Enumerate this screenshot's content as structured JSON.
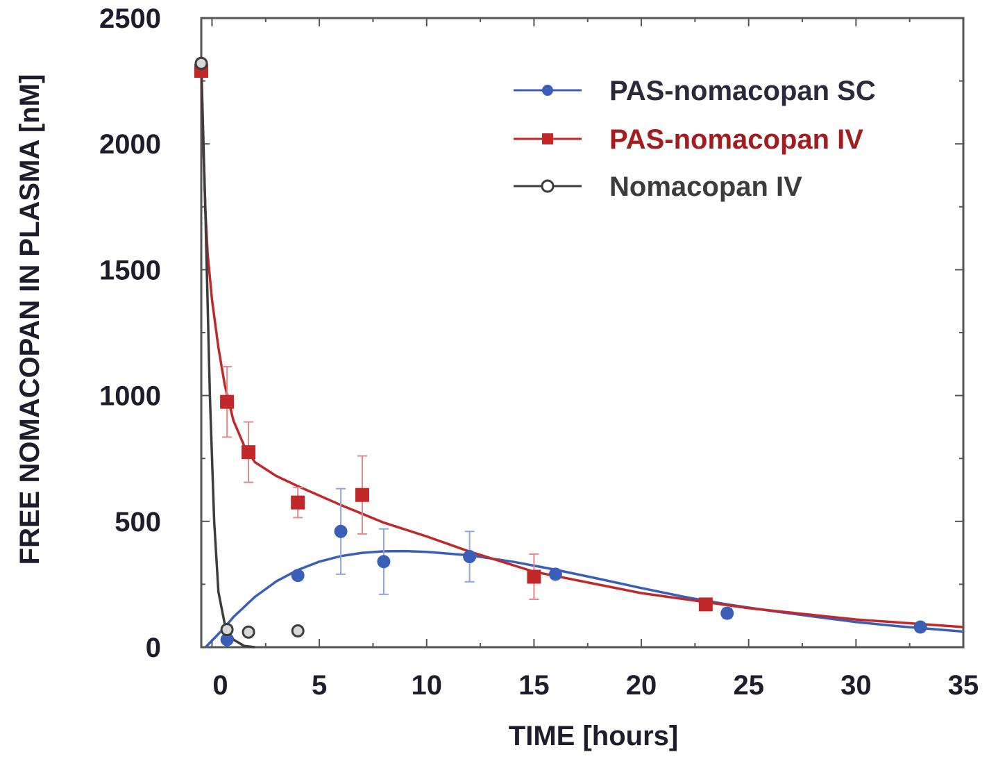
{
  "chart_data": {
    "type": "line",
    "title": "",
    "xlabel": "TIME [hours]",
    "ylabel": "FREE NOMACOPAN IN PLASMA  [nM]",
    "xlim": [
      -0.5,
      35
    ],
    "ylim": [
      0,
      2500
    ],
    "xticks": [
      0,
      5,
      10,
      15,
      20,
      25,
      30,
      35
    ],
    "yticks": [
      0,
      500,
      1000,
      1500,
      2000,
      2500
    ],
    "xtick_labels": [
      "0",
      "5",
      "10",
      "15",
      "20",
      "25",
      "30",
      "35"
    ],
    "ytick_labels": [
      "0",
      "500",
      "1000",
      "1500",
      "2000",
      "2500"
    ],
    "grid": false,
    "legend_position": "top-right",
    "series": [
      {
        "name": "PAS-nomacopan SC",
        "color": "#3a5fb8",
        "label_color": "#2a2a3a",
        "marker": "circle",
        "points": [
          {
            "x": 0.7,
            "y": 30,
            "err": 0
          },
          {
            "x": 4,
            "y": 285,
            "err": 0
          },
          {
            "x": 6,
            "y": 460,
            "err": 170
          },
          {
            "x": 8,
            "y": 340,
            "err": 130
          },
          {
            "x": 12,
            "y": 360,
            "err": 100
          },
          {
            "x": 16,
            "y": 290,
            "err": 0
          },
          {
            "x": 24,
            "y": 135,
            "err": 20
          },
          {
            "x": 33,
            "y": 80,
            "err": 0
          }
        ],
        "fit": [
          [
            -0.3,
            0
          ],
          [
            0.5,
            70
          ],
          [
            1,
            120
          ],
          [
            2,
            200
          ],
          [
            3,
            262
          ],
          [
            4,
            307
          ],
          [
            5,
            340
          ],
          [
            6,
            362
          ],
          [
            7,
            375
          ],
          [
            8,
            381
          ],
          [
            9,
            382
          ],
          [
            10,
            379
          ],
          [
            12,
            365
          ],
          [
            14,
            340
          ],
          [
            16,
            308
          ],
          [
            18,
            272
          ],
          [
            20,
            235
          ],
          [
            22,
            200
          ],
          [
            24,
            170
          ],
          [
            26,
            145
          ],
          [
            28,
            122
          ],
          [
            30,
            100
          ],
          [
            32,
            83
          ],
          [
            35,
            62
          ]
        ]
      },
      {
        "name": "PAS-nomacopan IV",
        "color": "#c0282a",
        "label_color": "#a11d1f",
        "marker": "square",
        "points": [
          {
            "x": -0.5,
            "y": 2290,
            "err": 0
          },
          {
            "x": 0.7,
            "y": 975,
            "err": 140
          },
          {
            "x": 1.7,
            "y": 775,
            "err": 120
          },
          {
            "x": 4,
            "y": 575,
            "err": 60
          },
          {
            "x": 7,
            "y": 605,
            "err": 155
          },
          {
            "x": 15,
            "y": 280,
            "err": 90
          },
          {
            "x": 23,
            "y": 170,
            "err": 0
          }
        ],
        "fit": [
          [
            -0.5,
            2290
          ],
          [
            -0.4,
            1980
          ],
          [
            -0.3,
            1720
          ],
          [
            -0.2,
            1560
          ],
          [
            0,
            1380
          ],
          [
            0.3,
            1190
          ],
          [
            0.6,
            1040
          ],
          [
            1,
            900
          ],
          [
            1.5,
            800
          ],
          [
            2,
            735
          ],
          [
            3,
            680
          ],
          [
            4,
            640
          ],
          [
            6,
            565
          ],
          [
            8,
            495
          ],
          [
            10,
            440
          ],
          [
            12,
            380
          ],
          [
            15,
            300
          ],
          [
            20,
            215
          ],
          [
            25,
            155
          ],
          [
            30,
            110
          ],
          [
            35,
            80
          ]
        ]
      },
      {
        "name": "Nomacopan IV",
        "color": "#3c3c3c",
        "label_color": "#3c3c3c",
        "marker": "open-circle",
        "points": [
          {
            "x": -0.5,
            "y": 2320,
            "err": 0
          },
          {
            "x": 0.7,
            "y": 70,
            "err": 0
          },
          {
            "x": 1.7,
            "y": 60,
            "err": 0
          },
          {
            "x": 4,
            "y": 65,
            "err": 0
          }
        ],
        "fit": [
          [
            -0.5,
            2320
          ],
          [
            -0.3,
            1700
          ],
          [
            -0.1,
            1000
          ],
          [
            0.1,
            500
          ],
          [
            0.3,
            220
          ],
          [
            0.6,
            90
          ],
          [
            1,
            30
          ],
          [
            1.5,
            5
          ],
          [
            2,
            0
          ]
        ]
      }
    ]
  }
}
